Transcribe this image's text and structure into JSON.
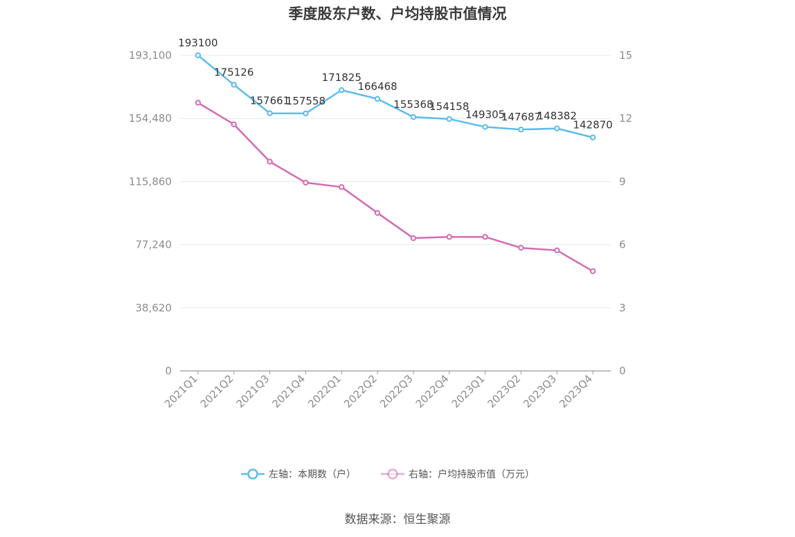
{
  "title": "季度股东户数、户均持股市值情况",
  "source": "数据来源：恒生聚源",
  "colors": {
    "left_series": "#5bbcec",
    "right_series": "#d36bb2",
    "grid": "#e3e8f0",
    "axis": "#999999"
  },
  "chart_data": {
    "type": "line",
    "title": "季度股东户数、户均持股市值情况",
    "categories": [
      "2021Q1",
      "2021Q2",
      "2021Q3",
      "2021Q4",
      "2022Q1",
      "2022Q2",
      "2022Q3",
      "2022Q4",
      "2023Q1",
      "2023Q2",
      "2023Q3",
      "2023Q4"
    ],
    "y_left": {
      "ticks": [
        "0",
        "38,620",
        "77,240",
        "115,860",
        "154,480",
        "193,100"
      ],
      "range": [
        0,
        193100
      ]
    },
    "y_right": {
      "ticks": [
        "0",
        "3",
        "6",
        "9",
        "12",
        "15"
      ],
      "range": [
        0,
        15
      ]
    },
    "grid": true,
    "legend_position": "bottom",
    "series": [
      {
        "name": "左轴：本期数（户）",
        "axis": "left",
        "values": [
          193100,
          175126,
          157661,
          157558,
          171825,
          166468,
          155368,
          154158,
          149305,
          147687,
          148382,
          142870
        ],
        "labels": [
          "193100",
          "175126",
          "157661",
          "157558",
          "171825",
          "166468",
          "155368",
          "154158",
          "149305",
          "147687",
          "148382",
          "142870"
        ]
      },
      {
        "name": "右轴：户均持股市值（万元）",
        "axis": "right",
        "values": [
          12.75,
          11.72,
          9.95,
          8.95,
          8.74,
          7.51,
          6.31,
          6.37,
          6.37,
          5.85,
          5.73,
          4.74
        ]
      }
    ]
  }
}
